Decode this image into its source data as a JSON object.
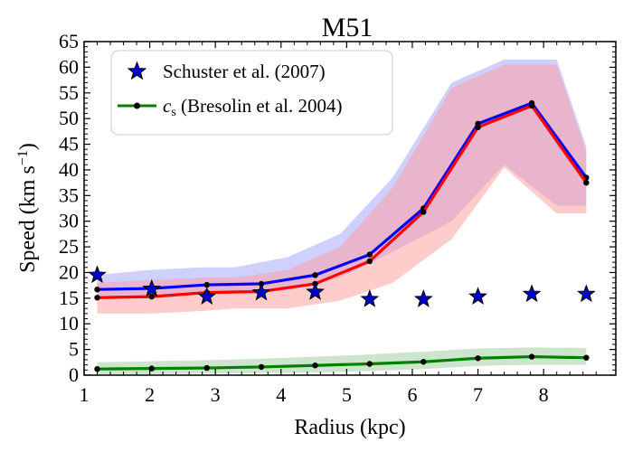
{
  "chart_data": {
    "type": "line",
    "title": "M51",
    "xlabel": "Radius (kpc)",
    "ylabel": "Speed (km s⁻¹)",
    "xlim": [
      1,
      9.1
    ],
    "ylim": [
      0,
      65
    ],
    "xticks": [
      1,
      2,
      3,
      4,
      5,
      6,
      7,
      8
    ],
    "yticks": [
      0,
      5,
      10,
      15,
      20,
      25,
      30,
      35,
      40,
      45,
      50,
      55,
      60,
      65
    ],
    "legend_position": "top-left",
    "colors": {
      "blue_line": "#0000ff",
      "red_line": "#ff0000",
      "green_line": "#008000",
      "blue_band": "#aaaaff",
      "red_band": "#ff9999",
      "green_band": "#99cc99",
      "star_fill": "#0000cc"
    },
    "bands": [
      {
        "color": "blue_band",
        "x": [
          1.2,
          2.0,
          2.8,
          3.3,
          4.1,
          4.9,
          5.7,
          6.6,
          7.4,
          8.2,
          8.65
        ],
        "lower": [
          15.5,
          15.5,
          16,
          16.5,
          16.5,
          19,
          24,
          30,
          41,
          33,
          33
        ],
        "upper": [
          19.5,
          20.5,
          21,
          21,
          23,
          27.5,
          38.5,
          57,
          61.5,
          61.5,
          44.5
        ]
      },
      {
        "color": "red_band",
        "x": [
          1.2,
          2.0,
          2.8,
          3.3,
          4.1,
          4.9,
          5.7,
          6.6,
          7.4,
          8.2,
          8.65
        ],
        "lower": [
          12,
          12,
          12.5,
          13,
          13,
          14.5,
          18,
          26.5,
          40.5,
          31.5,
          31.5
        ],
        "upper": [
          18,
          18.5,
          19,
          19,
          20.5,
          25,
          36.5,
          56,
          60.5,
          60.5,
          43.5
        ]
      },
      {
        "color": "green_band",
        "x": [
          1.2,
          2.0,
          2.8,
          3.7,
          4.5,
          5.3,
          6.2,
          7.0,
          7.8,
          8.65
        ],
        "lower": [
          0.2,
          0.2,
          0.3,
          0.4,
          0.5,
          0.8,
          1.2,
          1.8,
          2.0,
          2.0
        ],
        "upper": [
          2.5,
          2.7,
          2.9,
          3.2,
          3.6,
          4.0,
          4.6,
          5.2,
          5.4,
          5.3
        ]
      }
    ],
    "series": [
      {
        "color": "blue_line",
        "x": [
          1.2,
          2.03,
          2.87,
          3.7,
          4.52,
          5.35,
          6.17,
          7.0,
          7.82,
          8.65
        ],
        "y": [
          16.7,
          16.9,
          17.6,
          17.8,
          19.5,
          23.5,
          32.5,
          49,
          53,
          38.5
        ]
      },
      {
        "color": "red_line",
        "x": [
          1.2,
          2.03,
          2.87,
          3.7,
          4.52,
          5.35,
          6.17,
          7.0,
          7.82,
          8.65
        ],
        "y": [
          15.1,
          15.3,
          16.1,
          16.3,
          17.8,
          22.2,
          31.8,
          48.3,
          52.5,
          37.5
        ]
      },
      {
        "name": "c_s (Bresolin et al. 2004)",
        "color": "green_line",
        "x": [
          1.2,
          2.03,
          2.87,
          3.7,
          4.52,
          5.35,
          6.17,
          7.0,
          7.82,
          8.65
        ],
        "y": [
          1.2,
          1.3,
          1.4,
          1.6,
          1.9,
          2.2,
          2.6,
          3.3,
          3.6,
          3.4
        ]
      }
    ],
    "scatter": {
      "name": "Schuster et al. (2007)",
      "marker": "star",
      "x": [
        1.2,
        2.03,
        2.87,
        3.7,
        4.52,
        5.35,
        6.17,
        7.0,
        7.82,
        8.65
      ],
      "y": [
        19.5,
        16.8,
        15.3,
        16.1,
        16.2,
        14.8,
        14.8,
        15.3,
        15.8,
        15.8
      ]
    }
  },
  "legend": {
    "scatter_label": "Schuster et al. (2007)",
    "line_symbol": "c",
    "line_symbol_sub": "s",
    "line_label_rest": " (Bresolin et al. 2004)"
  }
}
